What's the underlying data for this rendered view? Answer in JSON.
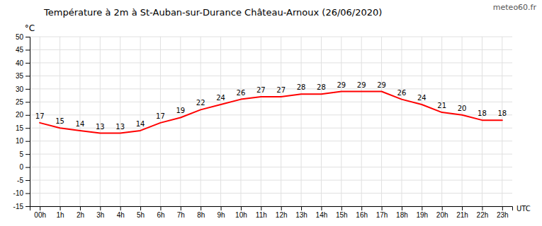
{
  "chart_data": {
    "type": "line",
    "title": "Température à 2m à St-Auban-sur-Durance Château-Arnoux (26/06/2020)",
    "x_label": "UTC",
    "y_label": "°C",
    "annotations": [
      "meteo60.fr"
    ],
    "categories": [
      "00h",
      "1h",
      "2h",
      "3h",
      "4h",
      "5h",
      "6h",
      "7h",
      "8h",
      "9h",
      "10h",
      "11h",
      "12h",
      "13h",
      "14h",
      "15h",
      "16h",
      "17h",
      "18h",
      "19h",
      "20h",
      "21h",
      "22h",
      "23h"
    ],
    "values": [
      17,
      15,
      14,
      13,
      13,
      14,
      17,
      19,
      22,
      24,
      26,
      27,
      27,
      28,
      28,
      29,
      29,
      29,
      26,
      24,
      21,
      20,
      18,
      18
    ],
    "color": "#ff0000",
    "ylim": [
      -15,
      50
    ],
    "yticks": [
      -15,
      -10,
      -5,
      0,
      5,
      10,
      15,
      20,
      25,
      30,
      35,
      40,
      45,
      50
    ],
    "grid": true,
    "data_labels": true
  }
}
